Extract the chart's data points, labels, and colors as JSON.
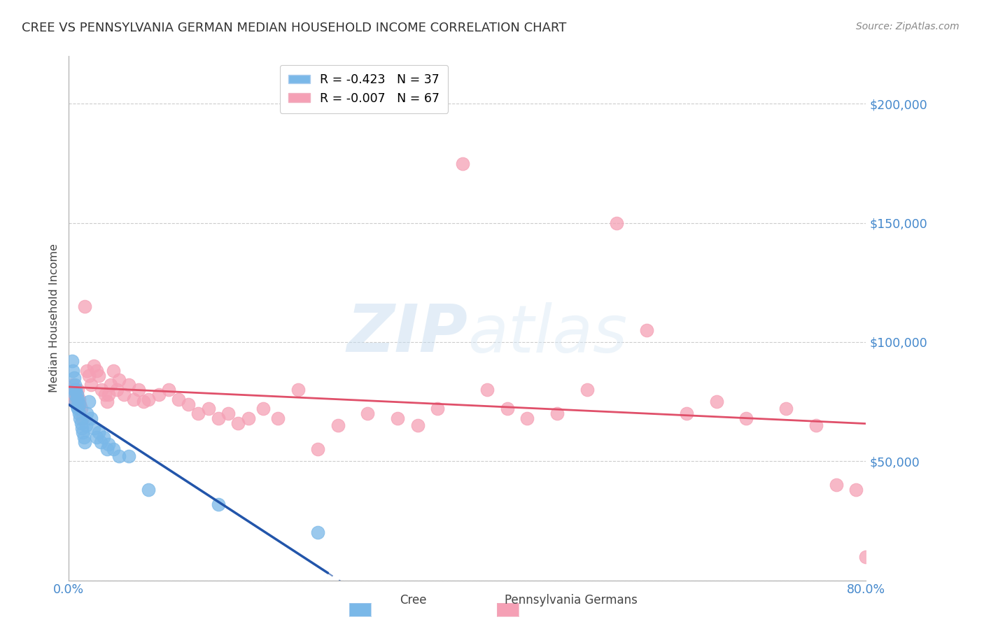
{
  "title": "CREE VS PENNSYLVANIA GERMAN MEDIAN HOUSEHOLD INCOME CORRELATION CHART",
  "source": "Source: ZipAtlas.com",
  "ylabel": "Median Household Income",
  "x_min": 0.0,
  "x_max": 0.8,
  "y_min": 0,
  "y_max": 220000,
  "y_ticks": [
    0,
    50000,
    100000,
    150000,
    200000
  ],
  "y_tick_labels": [
    "",
    "$50,000",
    "$100,000",
    "$150,000",
    "$200,000"
  ],
  "x_ticks": [
    0.0,
    0.2,
    0.4,
    0.6,
    0.8
  ],
  "x_tick_labels": [
    "0.0%",
    "",
    "",
    "",
    "80.0%"
  ],
  "cree_color": "#7ab8e8",
  "pa_german_color": "#f5a0b5",
  "cree_line_color": "#2255aa",
  "pa_line_color": "#e0506a",
  "cree_R": -0.423,
  "cree_N": 37,
  "pa_R": -0.007,
  "pa_N": 67,
  "legend_label_cree": "Cree",
  "legend_label_pa": "Pennsylvania Germans",
  "watermark_zip": "ZIP",
  "watermark_atlas": "atlas",
  "background_color": "#ffffff",
  "cree_x": [
    0.003,
    0.004,
    0.005,
    0.005,
    0.006,
    0.006,
    0.007,
    0.007,
    0.008,
    0.008,
    0.009,
    0.009,
    0.01,
    0.01,
    0.011,
    0.012,
    0.013,
    0.014,
    0.015,
    0.016,
    0.017,
    0.018,
    0.02,
    0.022,
    0.025,
    0.028,
    0.03,
    0.032,
    0.035,
    0.038,
    0.04,
    0.045,
    0.05,
    0.06,
    0.08,
    0.15,
    0.25
  ],
  "cree_y": [
    92000,
    88000,
    85000,
    80000,
    82000,
    78000,
    80000,
    75000,
    78000,
    73000,
    76000,
    72000,
    74000,
    70000,
    68000,
    66000,
    64000,
    62000,
    60000,
    58000,
    65000,
    70000,
    75000,
    68000,
    64000,
    60000,
    62000,
    58000,
    60000,
    55000,
    57000,
    55000,
    52000,
    52000,
    38000,
    32000,
    20000
  ],
  "pa_x": [
    0.003,
    0.004,
    0.005,
    0.006,
    0.007,
    0.008,
    0.009,
    0.01,
    0.011,
    0.012,
    0.014,
    0.016,
    0.018,
    0.02,
    0.022,
    0.025,
    0.028,
    0.03,
    0.033,
    0.036,
    0.038,
    0.04,
    0.042,
    0.045,
    0.048,
    0.05,
    0.055,
    0.06,
    0.065,
    0.07,
    0.075,
    0.08,
    0.09,
    0.1,
    0.11,
    0.12,
    0.13,
    0.14,
    0.15,
    0.16,
    0.17,
    0.18,
    0.195,
    0.21,
    0.23,
    0.25,
    0.27,
    0.3,
    0.33,
    0.35,
    0.37,
    0.395,
    0.42,
    0.44,
    0.46,
    0.49,
    0.52,
    0.55,
    0.58,
    0.62,
    0.65,
    0.68,
    0.72,
    0.75,
    0.77,
    0.79,
    0.8
  ],
  "pa_y": [
    80000,
    82000,
    78000,
    75000,
    76000,
    78000,
    80000,
    76000,
    74000,
    72000,
    68000,
    115000,
    88000,
    86000,
    82000,
    90000,
    88000,
    86000,
    80000,
    78000,
    75000,
    78000,
    82000,
    88000,
    80000,
    84000,
    78000,
    82000,
    76000,
    80000,
    75000,
    76000,
    78000,
    80000,
    76000,
    74000,
    70000,
    72000,
    68000,
    70000,
    66000,
    68000,
    72000,
    68000,
    80000,
    55000,
    65000,
    70000,
    68000,
    65000,
    72000,
    175000,
    80000,
    72000,
    68000,
    70000,
    80000,
    150000,
    105000,
    70000,
    75000,
    68000,
    72000,
    65000,
    40000,
    38000,
    10000
  ]
}
